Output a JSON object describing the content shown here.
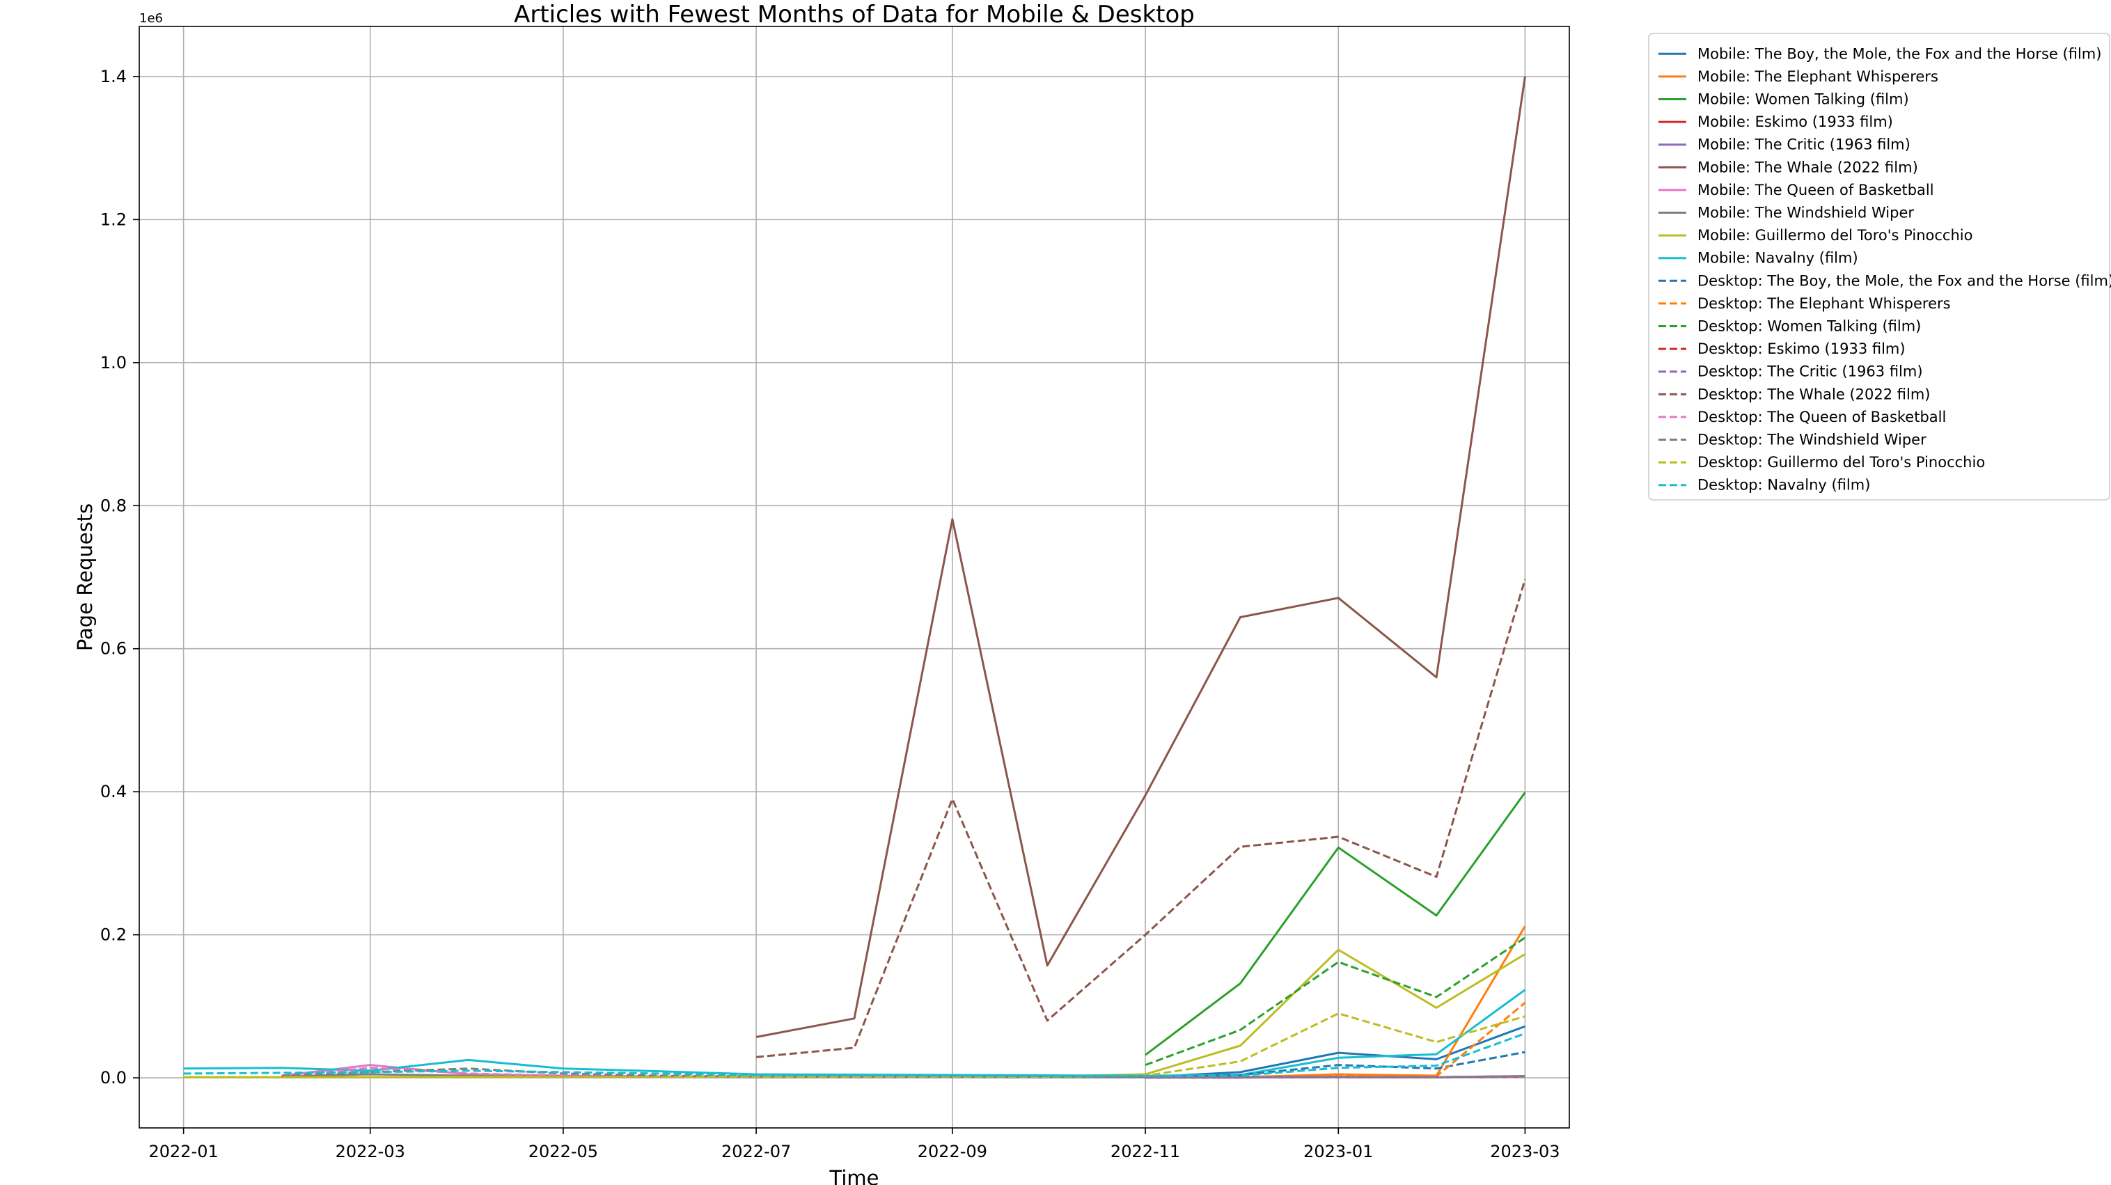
{
  "chart_data": {
    "type": "line",
    "title": "Articles with Fewest Months of Data for Mobile & Desktop",
    "xlabel": "Time",
    "ylabel": "Page Requests",
    "y_offset_label": "1e6",
    "grid": true,
    "legend_position": "outside-top-right",
    "x_tick_labels": [
      "2022-01",
      "2022-03",
      "2022-05",
      "2022-07",
      "2022-09",
      "2022-11",
      "2023-01",
      "2023-03"
    ],
    "y_tick_labels": [
      "0.0",
      "0.2",
      "0.4",
      "0.6",
      "0.8",
      "1.0",
      "1.2",
      "1.4"
    ],
    "xlim": [
      "2021-12-18",
      "2023-03-15"
    ],
    "ylim": [
      -70000,
      1470000
    ],
    "series": [
      {
        "name": "Mobile: The Boy, the Mole, the Fox and the Horse (film)",
        "color": "#1f77b4",
        "dash": "solid",
        "x": [
          "2022-11-01",
          "2022-12-01",
          "2023-01-01",
          "2023-02-01",
          "2023-03-01"
        ],
        "y": [
          1000,
          8000,
          35000,
          26000,
          72000
        ]
      },
      {
        "name": "Mobile: The Elephant Whisperers",
        "color": "#ff7f0e",
        "dash": "solid",
        "x": [
          "2022-11-01",
          "2022-12-01",
          "2023-01-01",
          "2023-02-01",
          "2023-03-01"
        ],
        "y": [
          500,
          1000,
          5000,
          3000,
          212000
        ]
      },
      {
        "name": "Mobile: Women Talking (film)",
        "color": "#2ca02c",
        "dash": "solid",
        "x": [
          "2022-11-01",
          "2022-12-01",
          "2023-01-01",
          "2023-02-01",
          "2023-03-01"
        ],
        "y": [
          32000,
          132000,
          322000,
          227000,
          399000
        ]
      },
      {
        "name": "Mobile: Eskimo (1933 film)",
        "color": "#d62728",
        "dash": "solid",
        "x": [
          "2022-11-01",
          "2022-12-01",
          "2023-01-01",
          "2023-02-01",
          "2023-03-01"
        ],
        "y": [
          500,
          500,
          1000,
          800,
          2000
        ]
      },
      {
        "name": "Mobile: The Critic (1963 film)",
        "color": "#9467bd",
        "dash": "solid",
        "x": [
          "2022-11-01",
          "2022-12-01",
          "2023-01-01",
          "2023-02-01",
          "2023-03-01"
        ],
        "y": [
          500,
          500,
          1000,
          1000,
          2500
        ]
      },
      {
        "name": "Mobile: The Whale (2022 film)",
        "color": "#8c564b",
        "dash": "solid",
        "x": [
          "2022-07-01",
          "2022-08-01",
          "2022-09-01",
          "2022-10-01",
          "2022-11-01",
          "2022-12-01",
          "2023-01-01",
          "2023-02-01",
          "2023-03-01"
        ],
        "y": [
          57000,
          83000,
          781000,
          157000,
          395000,
          644000,
          671000,
          560000,
          1400000
        ]
      },
      {
        "name": "Mobile: The Queen of Basketball",
        "color": "#e377c2",
        "dash": "solid",
        "x": [
          "2022-02-01",
          "2022-03-01",
          "2022-04-01",
          "2022-05-01",
          "2022-06-01",
          "2022-07-01",
          "2022-08-01",
          "2022-09-01",
          "2022-10-01",
          "2022-11-01",
          "2022-12-01",
          "2023-01-01",
          "2023-02-01",
          "2023-03-01"
        ],
        "y": [
          3000,
          18000,
          5000,
          3000,
          2000,
          1500,
          1200,
          1200,
          1000,
          1000,
          1000,
          1000,
          1000,
          2000
        ]
      },
      {
        "name": "Mobile: The Windshield Wiper",
        "color": "#7f7f7f",
        "dash": "solid",
        "x": [
          "2022-02-01",
          "2022-03-01",
          "2022-04-01",
          "2022-05-01",
          "2022-06-01",
          "2022-07-01",
          "2022-08-01",
          "2022-09-01",
          "2022-10-01",
          "2022-11-01",
          "2022-12-01",
          "2023-01-01",
          "2023-02-01",
          "2023-03-01"
        ],
        "y": [
          2000,
          5000,
          3000,
          2000,
          1500,
          1000,
          1000,
          1000,
          1000,
          1000,
          1000,
          1000,
          1000,
          2000
        ]
      },
      {
        "name": "Mobile: Guillermo del Toro's Pinocchio",
        "color": "#bcbd22",
        "dash": "solid",
        "x": [
          "2022-01-01",
          "2022-02-01",
          "2022-03-01",
          "2022-04-01",
          "2022-05-01",
          "2022-06-01",
          "2022-07-01",
          "2022-08-01",
          "2022-09-01",
          "2022-10-01",
          "2022-11-01",
          "2022-12-01",
          "2023-01-01",
          "2023-02-01",
          "2023-03-01"
        ],
        "y": [
          1000,
          1000,
          1000,
          1500,
          1500,
          1500,
          2000,
          2000,
          2000,
          2000,
          5000,
          45000,
          179000,
          98000,
          173000
        ]
      },
      {
        "name": "Mobile: Navalny (film)",
        "color": "#17becf",
        "dash": "solid",
        "x": [
          "2022-01-01",
          "2022-02-01",
          "2022-03-01",
          "2022-04-01",
          "2022-05-01",
          "2022-06-01",
          "2022-07-01",
          "2022-08-01",
          "2022-09-01",
          "2022-10-01",
          "2022-11-01",
          "2022-12-01",
          "2023-01-01",
          "2023-02-01",
          "2023-03-01"
        ],
        "y": [
          13000,
          14000,
          10000,
          25000,
          13000,
          9000,
          5000,
          4500,
          4000,
          3500,
          3000,
          4000,
          28000,
          33000,
          123000
        ]
      },
      {
        "name": "Desktop: The Boy, the Mole, the Fox and the Horse (film)",
        "color": "#1f77b4",
        "dash": "dashed",
        "x": [
          "2022-11-01",
          "2022-12-01",
          "2023-01-01",
          "2023-02-01",
          "2023-03-01"
        ],
        "y": [
          500,
          4000,
          18000,
          13000,
          36000
        ]
      },
      {
        "name": "Desktop: The Elephant Whisperers",
        "color": "#ff7f0e",
        "dash": "dashed",
        "x": [
          "2022-11-01",
          "2022-12-01",
          "2023-01-01",
          "2023-02-01",
          "2023-03-01"
        ],
        "y": [
          500,
          500,
          3000,
          2000,
          105000
        ]
      },
      {
        "name": "Desktop: Women Talking (film)",
        "color": "#2ca02c",
        "dash": "dashed",
        "x": [
          "2022-11-01",
          "2022-12-01",
          "2023-01-01",
          "2023-02-01",
          "2023-03-01"
        ],
        "y": [
          18000,
          67000,
          162000,
          113000,
          196000
        ]
      },
      {
        "name": "Desktop: Eskimo (1933 film)",
        "color": "#d62728",
        "dash": "dashed",
        "x": [
          "2022-11-01",
          "2022-12-01",
          "2023-01-01",
          "2023-02-01",
          "2023-03-01"
        ],
        "y": [
          500,
          500,
          1000,
          800,
          1500
        ]
      },
      {
        "name": "Desktop: The Critic (1963 film)",
        "color": "#9467bd",
        "dash": "dashed",
        "x": [
          "2022-11-01",
          "2022-12-01",
          "2023-01-01",
          "2023-02-01",
          "2023-03-01"
        ],
        "y": [
          500,
          500,
          1000,
          1000,
          2000
        ]
      },
      {
        "name": "Desktop: The Whale (2022 film)",
        "color": "#8c564b",
        "dash": "dashed",
        "x": [
          "2022-07-01",
          "2022-08-01",
          "2022-09-01",
          "2022-10-01",
          "2022-11-01",
          "2022-12-01",
          "2023-01-01",
          "2023-02-01",
          "2023-03-01"
        ],
        "y": [
          29000,
          42000,
          390000,
          80000,
          200000,
          323000,
          337000,
          281000,
          697000
        ]
      },
      {
        "name": "Desktop: The Queen of Basketball",
        "color": "#e377c2",
        "dash": "dashed",
        "x": [
          "2022-02-01",
          "2022-03-01",
          "2022-04-01",
          "2022-05-01",
          "2022-06-01",
          "2022-07-01",
          "2022-08-01",
          "2022-09-01",
          "2022-10-01",
          "2022-11-01",
          "2022-12-01",
          "2023-01-01",
          "2023-02-01",
          "2023-03-01"
        ],
        "y": [
          2000,
          14000,
          6000,
          3000,
          2000,
          1500,
          1000,
          1000,
          1000,
          1000,
          1000,
          1000,
          1000,
          1500
        ]
      },
      {
        "name": "Desktop: The Windshield Wiper",
        "color": "#7f7f7f",
        "dash": "dashed",
        "x": [
          "2022-02-01",
          "2022-03-01",
          "2022-04-01",
          "2022-05-01",
          "2022-06-01",
          "2022-07-01",
          "2022-08-01",
          "2022-09-01",
          "2022-10-01",
          "2022-11-01",
          "2022-12-01",
          "2023-01-01",
          "2023-02-01",
          "2023-03-01"
        ],
        "y": [
          3000,
          8000,
          13000,
          6000,
          3000,
          2000,
          1500,
          1500,
          1000,
          1000,
          1000,
          1500,
          1000,
          2000
        ]
      },
      {
        "name": "Desktop: Guillermo del Toro's Pinocchio",
        "color": "#bcbd22",
        "dash": "dashed",
        "x": [
          "2022-01-01",
          "2022-02-01",
          "2022-03-01",
          "2022-04-01",
          "2022-05-01",
          "2022-06-01",
          "2022-07-01",
          "2022-08-01",
          "2022-09-01",
          "2022-10-01",
          "2022-11-01",
          "2022-12-01",
          "2023-01-01",
          "2023-02-01",
          "2023-03-01"
        ],
        "y": [
          1000,
          1000,
          1000,
          1000,
          1000,
          1000,
          1500,
          1500,
          1500,
          1500,
          3000,
          23000,
          90000,
          50000,
          86000
        ]
      },
      {
        "name": "Desktop: Navalny (film)",
        "color": "#17becf",
        "dash": "dashed",
        "x": [
          "2022-01-01",
          "2022-02-01",
          "2022-03-01",
          "2022-04-01",
          "2022-05-01",
          "2022-06-01",
          "2022-07-01",
          "2022-08-01",
          "2022-09-01",
          "2022-10-01",
          "2022-11-01",
          "2022-12-01",
          "2023-01-01",
          "2023-02-01",
          "2023-03-01"
        ],
        "y": [
          6000,
          7000,
          8000,
          10000,
          8000,
          6000,
          4000,
          3500,
          3000,
          2500,
          2500,
          3000,
          14000,
          17000,
          62000
        ]
      }
    ]
  }
}
